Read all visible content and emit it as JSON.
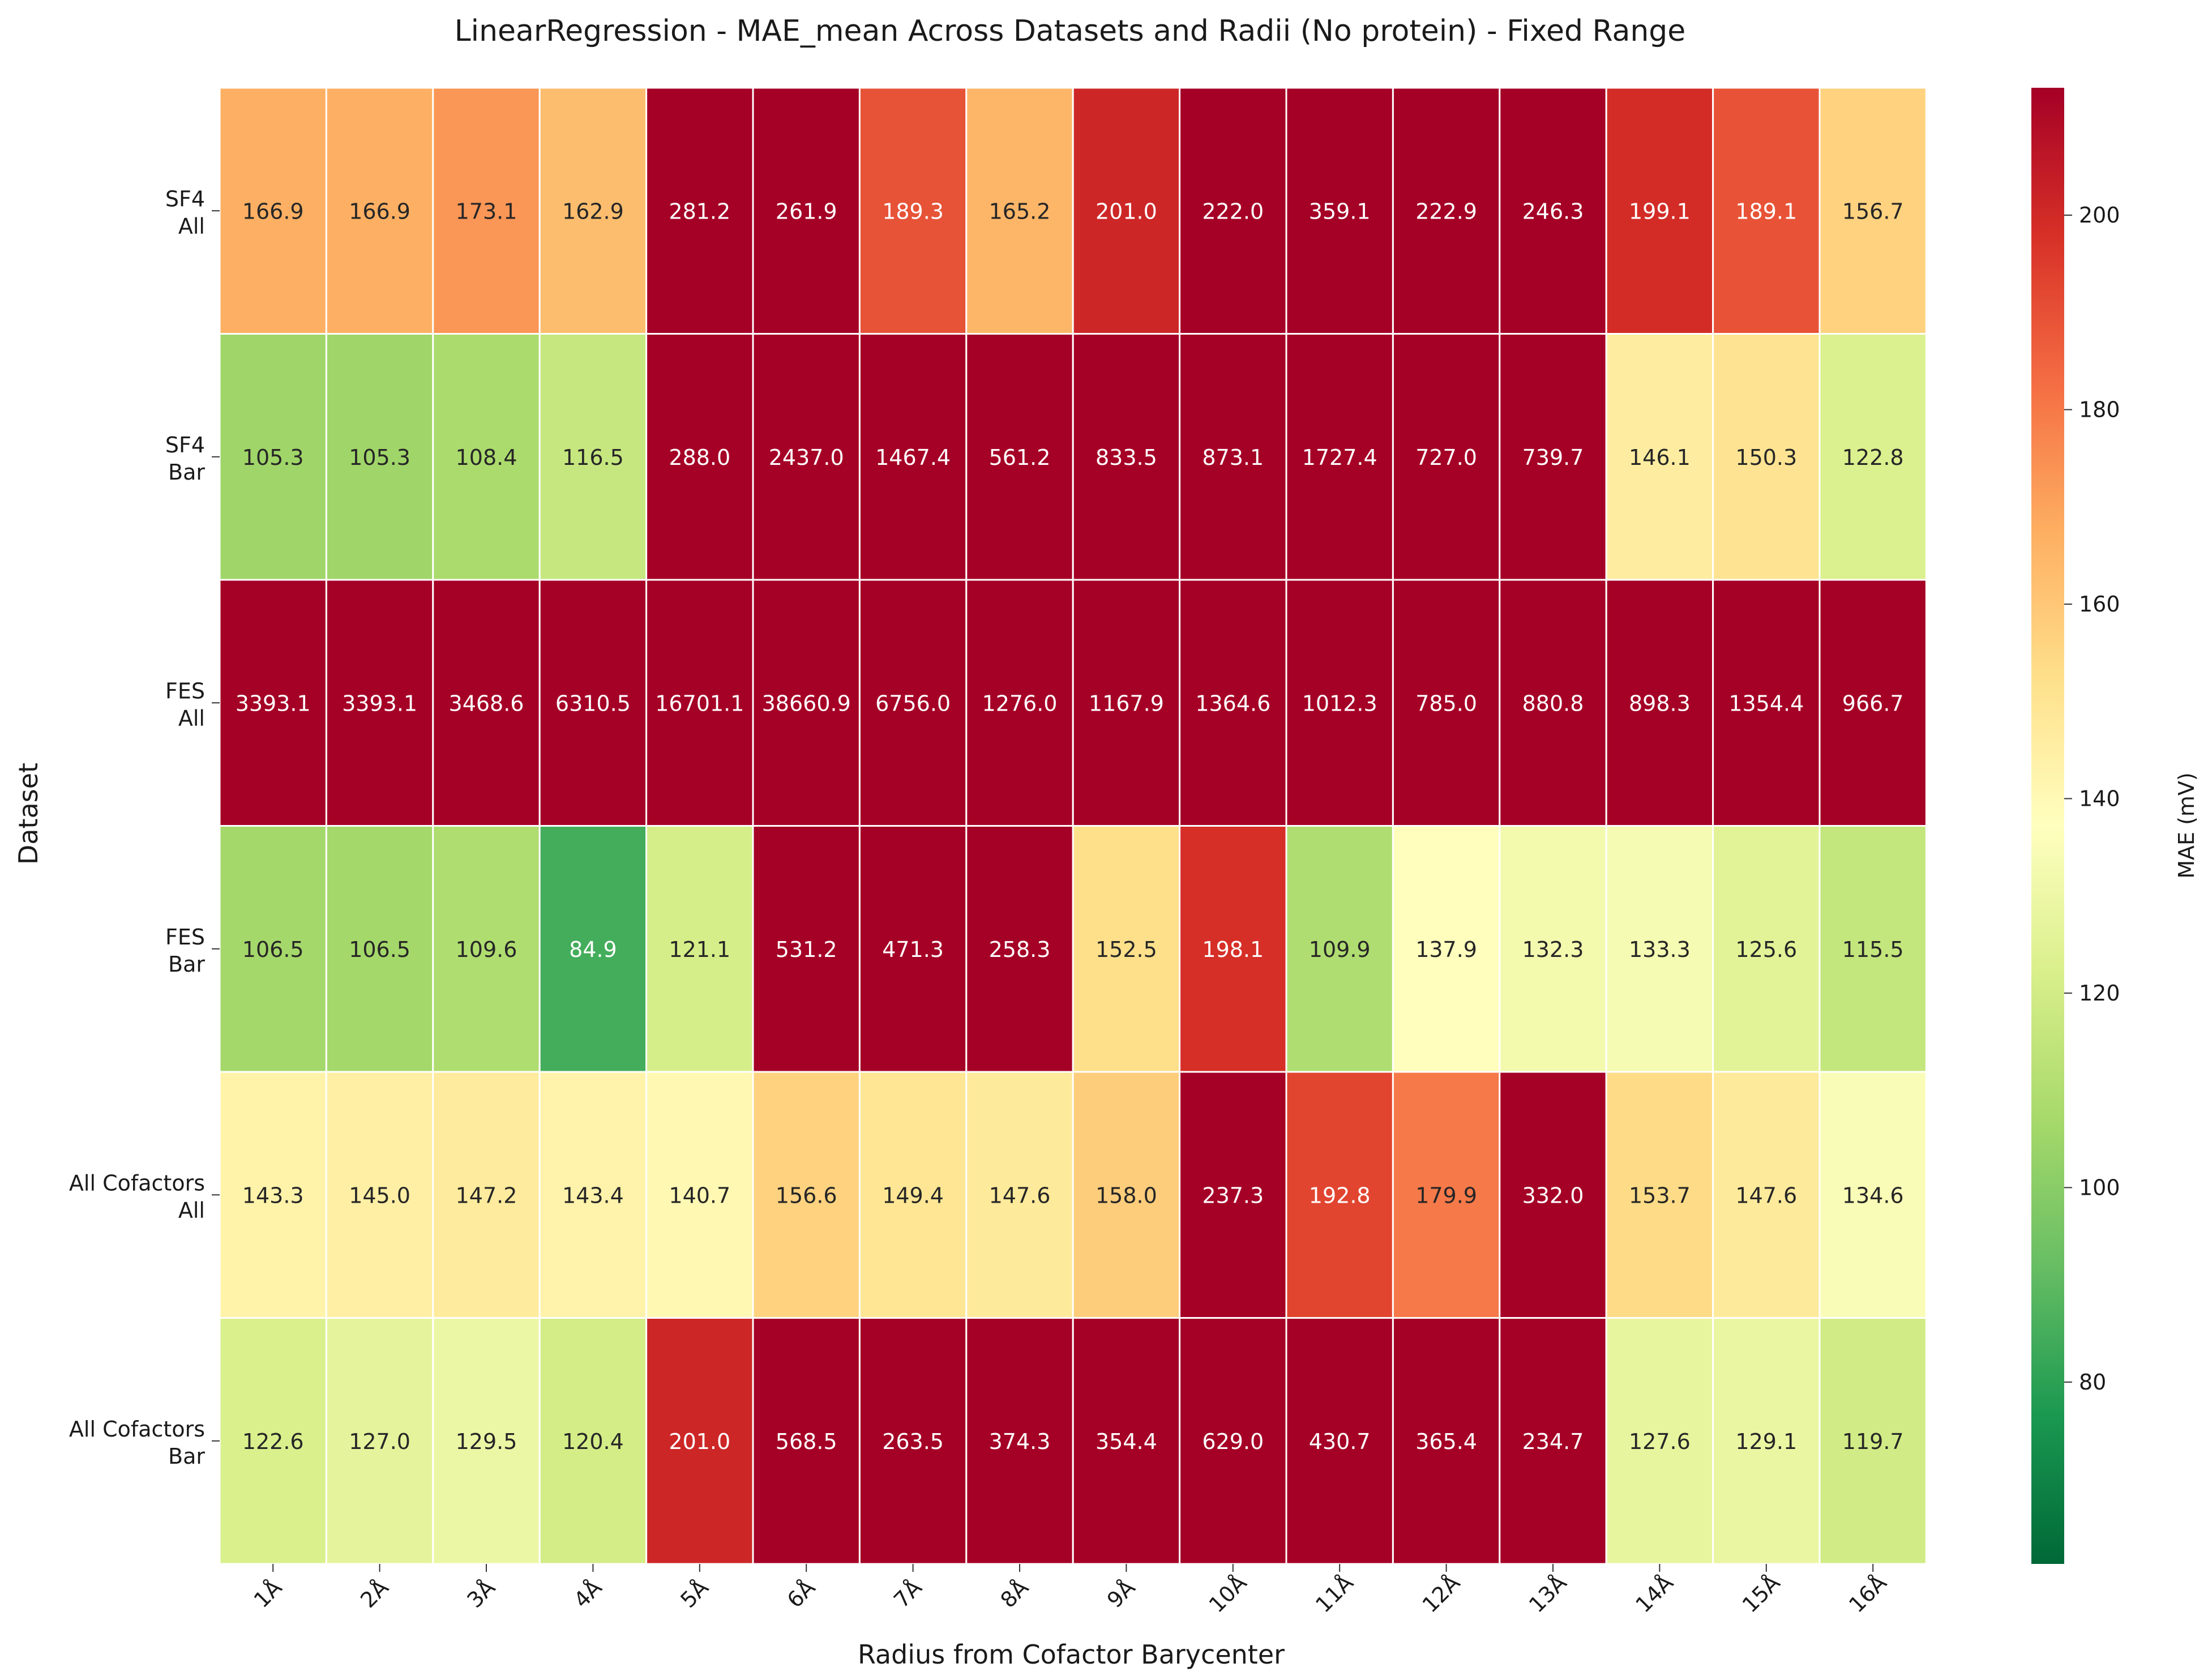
{
  "chart_data": {
    "type": "heatmap",
    "title": "LinearRegression - MAE_mean Across Datasets and Radii (No protein) - Fixed Range",
    "xlabel": "Radius from Cofactor Barycenter",
    "ylabel": "Dataset",
    "x_categories": [
      "1Å",
      "2Å",
      "3Å",
      "4Å",
      "5Å",
      "6Å",
      "7Å",
      "8Å",
      "9Å",
      "10Å",
      "11Å",
      "12Å",
      "13Å",
      "14Å",
      "15Å",
      "16Å"
    ],
    "y_categories": [
      {
        "line1": "SF4",
        "line2": "All"
      },
      {
        "line1": "SF4",
        "line2": "Bar"
      },
      {
        "line1": "FES",
        "line2": "All"
      },
      {
        "line1": "FES",
        "line2": "Bar"
      },
      {
        "line1": "All Cofactors",
        "line2": "All"
      },
      {
        "line1": "All Cofactors",
        "line2": "Bar"
      }
    ],
    "values": [
      [
        166.9,
        166.9,
        173.1,
        162.9,
        281.2,
        261.9,
        189.3,
        165.2,
        201.0,
        222.0,
        359.1,
        222.9,
        246.3,
        199.1,
        189.1,
        156.7
      ],
      [
        105.3,
        105.3,
        108.4,
        116.5,
        288.0,
        2437.0,
        1467.4,
        561.2,
        833.5,
        873.1,
        1727.4,
        727.0,
        739.7,
        146.1,
        150.3,
        122.8
      ],
      [
        3393.1,
        3393.1,
        3468.6,
        6310.5,
        16701.1,
        38660.9,
        6756.0,
        1276.0,
        1167.9,
        1364.6,
        1012.3,
        785.0,
        880.8,
        898.3,
        1354.4,
        966.7
      ],
      [
        106.5,
        106.5,
        109.6,
        84.9,
        121.1,
        531.2,
        471.3,
        258.3,
        152.5,
        198.1,
        109.9,
        137.9,
        132.3,
        133.3,
        125.6,
        115.5
      ],
      [
        143.3,
        145.0,
        147.2,
        143.4,
        140.7,
        156.6,
        149.4,
        147.6,
        158.0,
        237.3,
        192.8,
        179.9,
        332.0,
        153.7,
        147.6,
        134.6
      ],
      [
        122.6,
        127.0,
        129.5,
        120.4,
        201.0,
        568.5,
        263.5,
        374.3,
        354.4,
        629.0,
        430.7,
        365.4,
        234.7,
        127.6,
        129.1,
        119.7
      ]
    ],
    "color_scale": {
      "colormap": "RdYlGn_r",
      "vmin": 61.3,
      "vmax": 213.1,
      "label": "MAE (mV)",
      "ticks": [
        80,
        100,
        120,
        140,
        160,
        180,
        200
      ]
    },
    "grid": true,
    "legend": "colorbar-right"
  }
}
